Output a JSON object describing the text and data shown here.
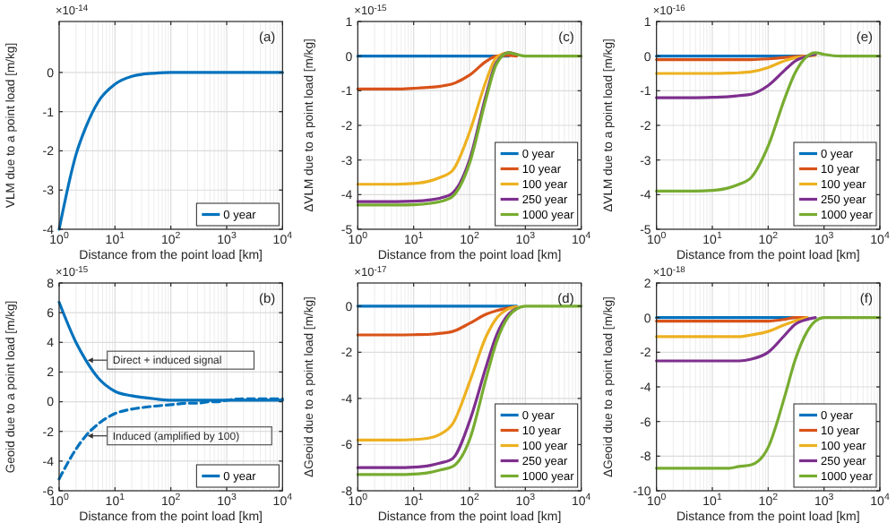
{
  "chart_data": [
    {
      "type": "line",
      "annotations": [
        "×10$^{-14}$",
        "(a)"
      ],
      "xlabel": "Distance from the point load [km]",
      "ylabel": "VLM due to a point load [m/kg]",
      "log": "x",
      "grid": true,
      "legend": "bottom right",
      "line_style": "solid",
      "x": [
        1,
        2,
        3,
        5,
        10,
        20,
        30,
        50,
        100,
        200,
        300,
        500,
        700,
        1000,
        2000,
        10000
      ],
      "xlim": [
        1,
        10000
      ],
      "xticks": [
        {
          "value": 1,
          "label": "10$^{0}$"
        },
        {
          "value": 10,
          "label": "10$^{1}$"
        },
        {
          "value": 100,
          "label": "10$^{2}$"
        },
        {
          "value": 1000,
          "label": "10$^{3}$"
        },
        {
          "value": 10000,
          "label": "10$^{4}$"
        }
      ],
      "ylim": [
        -4,
        1.3
      ],
      "yticks": [
        -4,
        -3,
        -2,
        -1,
        0
      ],
      "series": [
        {
          "name": "0 year",
          "color": "#0072bd",
          "values": [
            -4,
            -2.1,
            -1.4,
            -0.75,
            -0.3,
            -0.1,
            -0.05,
            -0.02,
            0,
            0,
            0,
            0,
            0,
            0,
            0,
            0
          ]
        }
      ]
    },
    {
      "type": "line",
      "annotations": [
        "×10$^{-15}$",
        "(c)"
      ],
      "xlabel": "Distance from the point load [km]",
      "ylabel": "ΔVLM due to a point load [m/kg]",
      "log": "x",
      "grid": true,
      "legend": "bottom right",
      "line_style": "solid",
      "x": [
        1,
        2,
        3,
        5,
        10,
        20,
        30,
        50,
        100,
        200,
        300,
        500,
        700,
        1000,
        2000,
        10000
      ],
      "xlim": [
        1,
        10000
      ],
      "xticks": [
        {
          "value": 1,
          "label": "10$^{0}$"
        },
        {
          "value": 10,
          "label": "10$^{1}$"
        },
        {
          "value": 100,
          "label": "10$^{2}$"
        },
        {
          "value": 1000,
          "label": "10$^{3}$"
        },
        {
          "value": 10000,
          "label": "10$^{4}$"
        }
      ],
      "ylim": [
        -5,
        1
      ],
      "yticks": [
        -5,
        -4,
        -3,
        -2,
        -1,
        0,
        1
      ],
      "series": [
        {
          "name": "0 year",
          "color": "#0072bd",
          "values": [
            0,
            0,
            0,
            0,
            0,
            0,
            0,
            0,
            0,
            0,
            0,
            0,
            null,
            null,
            null,
            null
          ]
        },
        {
          "name": "10 year",
          "color": "#d95319",
          "values": [
            -0.95,
            -0.95,
            -0.95,
            -0.95,
            -0.93,
            -0.9,
            -0.87,
            -0.8,
            -0.55,
            -0.15,
            0,
            0.02,
            0,
            null,
            null,
            null
          ]
        },
        {
          "name": "100 year",
          "color": "#edb120",
          "values": [
            -3.7,
            -3.7,
            -3.7,
            -3.7,
            -3.68,
            -3.6,
            -3.5,
            -3.3,
            -2.2,
            -0.7,
            -0.05,
            0.1,
            0.05,
            null,
            null,
            null
          ]
        },
        {
          "name": "250 year",
          "color": "#7e2f8e",
          "values": [
            -4.2,
            -4.2,
            -4.2,
            -4.2,
            -4.19,
            -4.15,
            -4.1,
            -3.95,
            -3,
            -1.1,
            -0.2,
            0.1,
            0.05,
            null,
            null,
            null
          ]
        },
        {
          "name": "1000 year",
          "color": "#77ac30",
          "values": [
            -4.3,
            -4.3,
            -4.3,
            -4.3,
            -4.29,
            -4.25,
            -4.2,
            -4.05,
            -3.1,
            -1.2,
            -0.25,
            0.1,
            0.05,
            0,
            0,
            0
          ]
        }
      ]
    },
    {
      "type": "line",
      "annotations": [
        "×10$^{-16}$",
        "(e)"
      ],
      "xlabel": "Distance from the point load [km]",
      "ylabel": "ΔVLM due to a point load [m/kg]",
      "log": "x",
      "grid": true,
      "legend": "bottom right",
      "line_style": "solid",
      "x": [
        1,
        2,
        3,
        5,
        10,
        20,
        30,
        50,
        100,
        200,
        300,
        500,
        700,
        1000,
        2000,
        10000
      ],
      "xlim": [
        1,
        10000
      ],
      "xticks": [
        {
          "value": 1,
          "label": "10$^{0}$"
        },
        {
          "value": 10,
          "label": "10$^{1}$"
        },
        {
          "value": 100,
          "label": "10$^{2}$"
        },
        {
          "value": 1000,
          "label": "10$^{3}$"
        },
        {
          "value": 10000,
          "label": "10$^{4}$"
        }
      ],
      "ylim": [
        -5,
        1
      ],
      "yticks": [
        -5,
        -4,
        -3,
        -2,
        -1,
        0,
        1
      ],
      "series": [
        {
          "name": "0 year",
          "color": "#0072bd",
          "values": [
            0,
            0,
            0,
            0,
            0,
            0,
            0,
            0,
            0,
            0,
            0,
            0,
            null,
            null,
            null,
            null
          ]
        },
        {
          "name": "10 year",
          "color": "#d95319",
          "values": [
            -0.1,
            -0.1,
            -0.1,
            -0.1,
            -0.1,
            -0.1,
            -0.1,
            -0.1,
            -0.08,
            -0.04,
            -0.01,
            0,
            null,
            null,
            null,
            null
          ]
        },
        {
          "name": "100 year",
          "color": "#edb120",
          "values": [
            -0.5,
            -0.5,
            -0.5,
            -0.5,
            -0.5,
            -0.49,
            -0.48,
            -0.45,
            -0.33,
            -0.13,
            -0.05,
            0,
            0.02,
            null,
            null,
            null
          ]
        },
        {
          "name": "250 year",
          "color": "#7e2f8e",
          "values": [
            -1.2,
            -1.2,
            -1.2,
            -1.2,
            -1.19,
            -1.17,
            -1.14,
            -1.1,
            -0.85,
            -0.4,
            -0.15,
            0,
            0.05,
            null,
            null,
            null
          ]
        },
        {
          "name": "1000 year",
          "color": "#77ac30",
          "values": [
            -3.9,
            -3.9,
            -3.9,
            -3.9,
            -3.88,
            -3.8,
            -3.7,
            -3.5,
            -2.6,
            -1.2,
            -0.5,
            0,
            0.1,
            0.05,
            0,
            0
          ]
        }
      ]
    },
    {
      "type": "line",
      "annotations": [
        "×10$^{-15}$",
        "(b)",
        {
          "text": "Direct + induced signal",
          "x": 3,
          "y": 2.8
        },
        {
          "text": "Induced (amplified by 100)",
          "x": 3,
          "y": -2.3
        }
      ],
      "xlabel": "Distance from the point load [km]",
      "ylabel": "Geoid due to a point load [m/kg]",
      "log": "x",
      "grid": true,
      "legend": "bottom right",
      "line_style": "solid",
      "x": [
        1,
        2,
        3,
        5,
        10,
        20,
        30,
        50,
        100,
        200,
        300,
        500,
        700,
        1000,
        2000,
        10000
      ],
      "xlim": [
        1,
        10000
      ],
      "xticks": [
        {
          "value": 1,
          "label": "10$^{0}$"
        },
        {
          "value": 10,
          "label": "10$^{1}$"
        },
        {
          "value": 100,
          "label": "10$^{2}$"
        },
        {
          "value": 1000,
          "label": "10$^{3}$"
        },
        {
          "value": 10000,
          "label": "10$^{4}$"
        }
      ],
      "ylim": [
        -6,
        8
      ],
      "yticks": [
        -6,
        -4,
        -2,
        0,
        2,
        4,
        6,
        8
      ],
      "series": [
        {
          "name": "0 year",
          "color": "#0072bd",
          "values": [
            6.7,
            4,
            2.8,
            1.6,
            0.7,
            0.4,
            0.3,
            0.2,
            0.1,
            0.1,
            0.1,
            0.1,
            0.1,
            0.1,
            0.1,
            0.1
          ]
        },
        {
          "color": "#0072bd",
          "line_style": "dashed",
          "values": [
            -5.2,
            -3.2,
            -2.3,
            -1.5,
            -0.8,
            -0.5,
            -0.4,
            -0.3,
            -0.2,
            -0.1,
            -0.1,
            0,
            0,
            0.1,
            0.2,
            0.2
          ]
        }
      ]
    },
    {
      "type": "line",
      "annotations": [
        "×10$^{-17}$",
        "(d)"
      ],
      "xlabel": "Distance from the point load [km]",
      "ylabel": "ΔGeoid due to a point load [m/kg]",
      "log": "x",
      "grid": true,
      "legend": "bottom right",
      "line_style": "solid",
      "x": [
        1,
        2,
        3,
        5,
        10,
        20,
        30,
        50,
        100,
        200,
        300,
        500,
        700,
        1000,
        2000,
        10000
      ],
      "xlim": [
        1,
        10000
      ],
      "xticks": [
        {
          "value": 1,
          "label": "10$^{0}$"
        },
        {
          "value": 10,
          "label": "10$^{1}$"
        },
        {
          "value": 100,
          "label": "10$^{2}$"
        },
        {
          "value": 1000,
          "label": "10$^{3}$"
        },
        {
          "value": 10000,
          "label": "10$^{4}$"
        }
      ],
      "ylim": [
        -8,
        1
      ],
      "yticks": [
        -8,
        -6,
        -4,
        -2,
        0
      ],
      "series": [
        {
          "name": "0 year",
          "color": "#0072bd",
          "values": [
            0,
            0,
            0,
            0,
            0,
            0,
            0,
            0,
            0,
            0,
            0,
            0,
            0,
            null,
            null,
            null
          ]
        },
        {
          "name": "10 year",
          "color": "#d95319",
          "values": [
            -1.25,
            -1.25,
            -1.25,
            -1.25,
            -1.24,
            -1.22,
            -1.18,
            -1.1,
            -0.75,
            -0.35,
            -0.2,
            -0.08,
            -0.03,
            null,
            null,
            null
          ]
        },
        {
          "name": "100 year",
          "color": "#edb120",
          "values": [
            -5.8,
            -5.8,
            -5.8,
            -5.8,
            -5.78,
            -5.7,
            -5.55,
            -5.1,
            -3.3,
            -1.3,
            -0.55,
            -0.12,
            -0.03,
            null,
            null,
            null
          ]
        },
        {
          "name": "250 year",
          "color": "#7e2f8e",
          "values": [
            -7,
            -7,
            -7,
            -7,
            -6.98,
            -6.9,
            -6.8,
            -6.6,
            -5,
            -2.6,
            -1.3,
            -0.35,
            -0.1,
            null,
            null,
            null
          ]
        },
        {
          "name": "1000 year",
          "color": "#77ac30",
          "values": [
            -7.3,
            -7.3,
            -7.3,
            -7.3,
            -7.28,
            -7.2,
            -7.1,
            -6.95,
            -5.8,
            -3.1,
            -1.6,
            -0.45,
            -0.12,
            0,
            0,
            0
          ]
        }
      ]
    },
    {
      "type": "line",
      "annotations": [
        "×10$^{-18}$",
        "(f)"
      ],
      "xlabel": "Distance from the point load [km]",
      "ylabel": "ΔGeoid due to a point load [m/kg]",
      "log": "x",
      "grid": true,
      "legend": "bottom right",
      "line_style": "solid",
      "x": [
        1,
        2,
        3,
        5,
        10,
        20,
        30,
        50,
        100,
        200,
        300,
        500,
        700,
        1000,
        2000,
        10000
      ],
      "xlim": [
        1,
        10000
      ],
      "xticks": [
        {
          "value": 1,
          "label": "10$^{0}$"
        },
        {
          "value": 10,
          "label": "10$^{1}$"
        },
        {
          "value": 100,
          "label": "10$^{2}$"
        },
        {
          "value": 1000,
          "label": "10$^{3}$"
        },
        {
          "value": 10000,
          "label": "10$^{4}$"
        }
      ],
      "ylim": [
        -10,
        2
      ],
      "yticks": [
        -10,
        -8,
        -6,
        -4,
        -2,
        0,
        2
      ],
      "series": [
        {
          "name": "0 year",
          "color": "#0072bd",
          "values": [
            0,
            0,
            0,
            0,
            0,
            0,
            0,
            0,
            0,
            0,
            0,
            0,
            null,
            null,
            null,
            null
          ]
        },
        {
          "name": "10 year",
          "color": "#d95319",
          "values": [
            -0.2,
            -0.2,
            -0.2,
            -0.2,
            -0.2,
            -0.2,
            -0.2,
            -0.2,
            -0.2,
            -0.1,
            0,
            0,
            null,
            null,
            null,
            null
          ]
        },
        {
          "name": "100 year",
          "color": "#edb120",
          "values": [
            -1.1,
            -1.1,
            -1.1,
            -1.1,
            -1.1,
            -1.1,
            -1.1,
            -1,
            -0.8,
            -0.4,
            -0.2,
            0,
            null,
            null,
            null,
            null
          ]
        },
        {
          "name": "250 year",
          "color": "#7e2f8e",
          "values": [
            -2.5,
            -2.5,
            -2.5,
            -2.5,
            -2.5,
            -2.5,
            -2.5,
            -2.4,
            -2,
            -1,
            -0.4,
            -0.1,
            0,
            null,
            null,
            null
          ]
        },
        {
          "name": "1000 year",
          "color": "#77ac30",
          "values": [
            -8.7,
            -8.7,
            -8.7,
            -8.7,
            -8.7,
            -8.7,
            -8.6,
            -8.5,
            -7.5,
            -4.5,
            -2.5,
            -0.8,
            -0.2,
            0,
            0,
            0
          ]
        }
      ]
    }
  ]
}
